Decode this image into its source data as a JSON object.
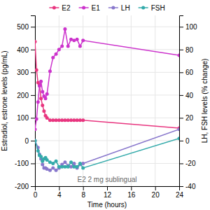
{
  "chart_data": {
    "type": "line",
    "xlabel": "Time (hours)",
    "ylabel": "Estradiol, estrone levels (pg/mL)",
    "y2label": "LH, FSH levels (% change)",
    "annotation": "E2 2 mg sublingual",
    "xlim": [
      0,
      24
    ],
    "ylim": [
      -200,
      550
    ],
    "y2lim": [
      -40,
      110
    ],
    "xticks": [
      0,
      4,
      8,
      12,
      16,
      20,
      24
    ],
    "yticks": [
      -200,
      -100,
      0,
      100,
      200,
      300,
      400,
      500
    ],
    "y2ticks": [
      -40,
      -20,
      0,
      20,
      40,
      60,
      80,
      100
    ],
    "grid": true,
    "legend": "top",
    "series": [
      {
        "name": "E2",
        "color": "#e8357f",
        "axis": "y",
        "marker": "circle",
        "x": [
          0,
          0.25,
          0.5,
          0.75,
          1.0,
          1.25,
          1.5,
          1.75,
          2.0,
          2.5,
          3.0,
          3.5,
          4.0,
          4.5,
          5.0,
          5.5,
          6.0,
          6.5,
          7.0,
          7.5,
          8.0,
          24.0
        ],
        "values": [
          435,
          310,
          255,
          245,
          185,
          155,
          130,
          110,
          100,
          90,
          90,
          90,
          90,
          90,
          90,
          90,
          90,
          90,
          90,
          90,
          90,
          55
        ]
      },
      {
        "name": "E1",
        "color": "#cc33cc",
        "axis": "y",
        "marker": "circle",
        "x": [
          0,
          0.25,
          0.5,
          0.75,
          1.0,
          1.25,
          1.5,
          1.75,
          2.0,
          2.5,
          3.0,
          3.5,
          4.0,
          4.5,
          5.0,
          5.5,
          6.0,
          6.5,
          7.0,
          7.5,
          8.0,
          24.0
        ],
        "values": [
          50,
          95,
          170,
          240,
          260,
          215,
          195,
          185,
          205,
          305,
          365,
          380,
          400,
          415,
          490,
          415,
          445,
          440,
          445,
          415,
          440,
          375
        ]
      },
      {
        "name": "LH",
        "color": "#8877cc",
        "axis": "y2",
        "marker": "circle",
        "x": [
          0,
          0.5,
          0.75,
          1.0,
          1.25,
          1.5,
          1.75,
          2.0,
          2.5,
          3.0,
          3.5,
          4.0,
          4.5,
          5.0,
          5.5,
          6.0,
          6.5,
          7.0,
          7.5,
          8.0,
          24.0
        ],
        "values": [
          0,
          -6,
          -12,
          -16,
          -21,
          -24,
          -24,
          -25,
          -26,
          -24,
          -26,
          -24,
          -21,
          -19,
          -22,
          -23,
          -20,
          -24,
          -21,
          -20,
          10
        ]
      },
      {
        "name": "FSH",
        "color": "#33aaaa",
        "axis": "y2",
        "marker": "circle",
        "x": [
          0,
          0.5,
          0.75,
          1.0,
          1.25,
          1.5,
          1.75,
          2.0,
          2.5,
          3.0,
          3.5,
          4.0,
          4.5,
          5.0,
          5.5,
          6.0,
          6.5,
          7.0,
          7.5,
          8.0,
          24.0
        ],
        "values": [
          0,
          -9,
          -13,
          -14,
          -18,
          -16,
          -15,
          -17,
          -19,
          -20,
          -18,
          -23,
          -23,
          -23,
          -23,
          -19,
          -23,
          -23,
          -20,
          -24,
          2
        ]
      }
    ]
  }
}
